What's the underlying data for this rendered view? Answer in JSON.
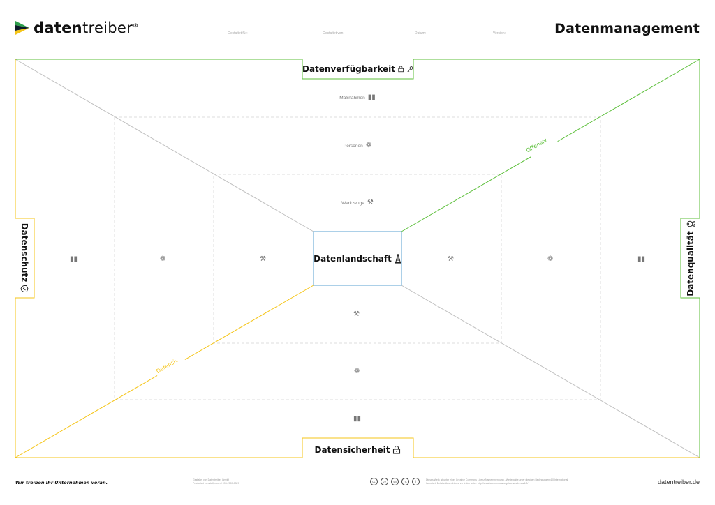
{
  "header": {
    "logo_word_bold": "daten",
    "logo_word_light": "treiber",
    "logo_reg": "®",
    "fields": [
      "Gestaltet für:",
      "Gestaltet von:",
      "Datum:",
      "Version:"
    ],
    "title": "Datenmanagement"
  },
  "canvas": {
    "top_box": "Datenverfügbarkeit",
    "bottom_box": "Datensicherheit",
    "left_box": "Datenschutz",
    "right_box": "Datenqualität",
    "center_box": "Datenlandschaft",
    "ring_labels": [
      "Maßnahmen",
      "Personen",
      "Werkzeuge"
    ],
    "diagonal_offensive": "Offensiv",
    "diagonal_defensive": "Defensiv",
    "colors": {
      "green": "#5cbf3a",
      "yellow": "#f5c518",
      "blue": "#5aa0d0",
      "gray": "#bbbbbb"
    }
  },
  "footer": {
    "tagline": "Wir treiben Ihr Unternehmen voran.",
    "credit_line1": "Gestaltet von Datentreiber GmbH",
    "credit_line2": "Produziert von stallpruner / 090-2009-0329",
    "license_line1": "Dieses Werk ist unter einer Creative Commons Lizenz Namensnennung - Weitergabe unter gleichen Bedingungen 4.0 International",
    "license_line2": "lizenziert. Details dieser Lizenz zu finden unter: http://creativecommons.org/licenses/by-sa/4.0/",
    "cc_icons": [
      "cc",
      "by",
      "sa",
      "nc",
      "i"
    ],
    "website": "datentreiber.de"
  }
}
